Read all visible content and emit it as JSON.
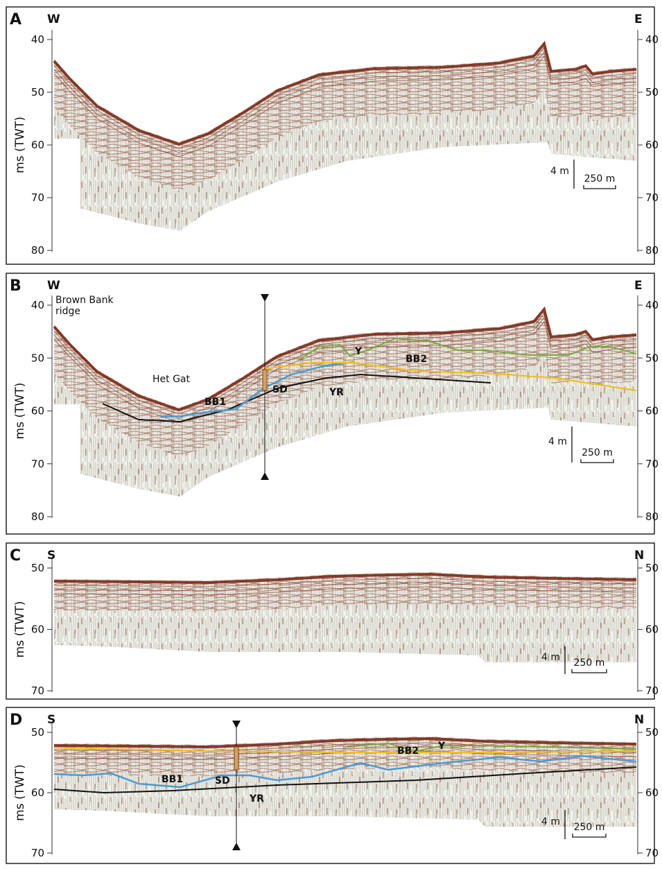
{
  "panels": [
    {
      "label": "A",
      "left": "W",
      "right": "E",
      "y_label": "ms (TWT)",
      "yticks": [
        40,
        50,
        60,
        70,
        80
      ],
      "scale_vertical": "4 m",
      "scale_horizontal": "250 m",
      "annotations": []
    },
    {
      "label": "B",
      "left": "W",
      "right": "E",
      "y_label": "ms (TWT)",
      "yticks": [
        40,
        50,
        60,
        70,
        80
      ],
      "scale_vertical": "4 m",
      "scale_horizontal": "250 m",
      "annotations": [
        "Brown Bank ridge",
        "Het Gat",
        "BB1",
        "SD",
        "YR",
        "Y",
        "BB2"
      ]
    },
    {
      "label": "C",
      "left": "S",
      "right": "N",
      "y_label": "ms (TWT)",
      "yticks": [
        50,
        60,
        70
      ],
      "scale_vertical": "4 m",
      "scale_horizontal": "250 m",
      "annotations": []
    },
    {
      "label": "D",
      "left": "S",
      "right": "N",
      "y_label": "ms (TWT)",
      "yticks": [
        50,
        60,
        70
      ],
      "scale_vertical": "4 m",
      "scale_horizontal": "250 m",
      "annotations": [
        "BB1",
        "SD",
        "YR",
        "BB2",
        "Y"
      ]
    }
  ]
}
